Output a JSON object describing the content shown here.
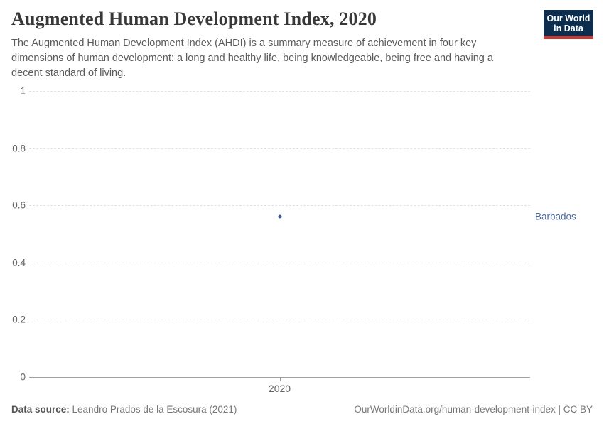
{
  "header": {
    "title": "Augmented Human Development Index, 2020",
    "subtitle": "The Augmented Human Development Index (AHDI) is a summary measure of achievement in four key dimensions of human development: a long and healthy life, being knowledgeable, being free and having a decent standard of living.",
    "logo": {
      "line1": "Our World",
      "line2": "in Data",
      "bg_color": "#0c2d4e",
      "accent_color": "#cd3731"
    }
  },
  "chart_data": {
    "type": "scatter",
    "title": "Augmented Human Development Index, 2020",
    "x": [
      2020
    ],
    "xticklabels": [
      "2020"
    ],
    "yticks": [
      0,
      0.2,
      0.4,
      0.6,
      0.8,
      1
    ],
    "ylim": [
      0,
      1
    ],
    "grid": "horizontal-dashed",
    "legend_position": "entity-label-right",
    "series": [
      {
        "name": "Barbados",
        "x": [
          2020
        ],
        "values": [
          0.56
        ],
        "color": "#3b5a94",
        "label_color": "#4c6a9c"
      }
    ]
  },
  "footer": {
    "source_label": "Data source:",
    "source_value": " Leandro Prados de la Escosura (2021)",
    "link_text": "OurWorldinData.org/human-development-index | CC BY"
  }
}
